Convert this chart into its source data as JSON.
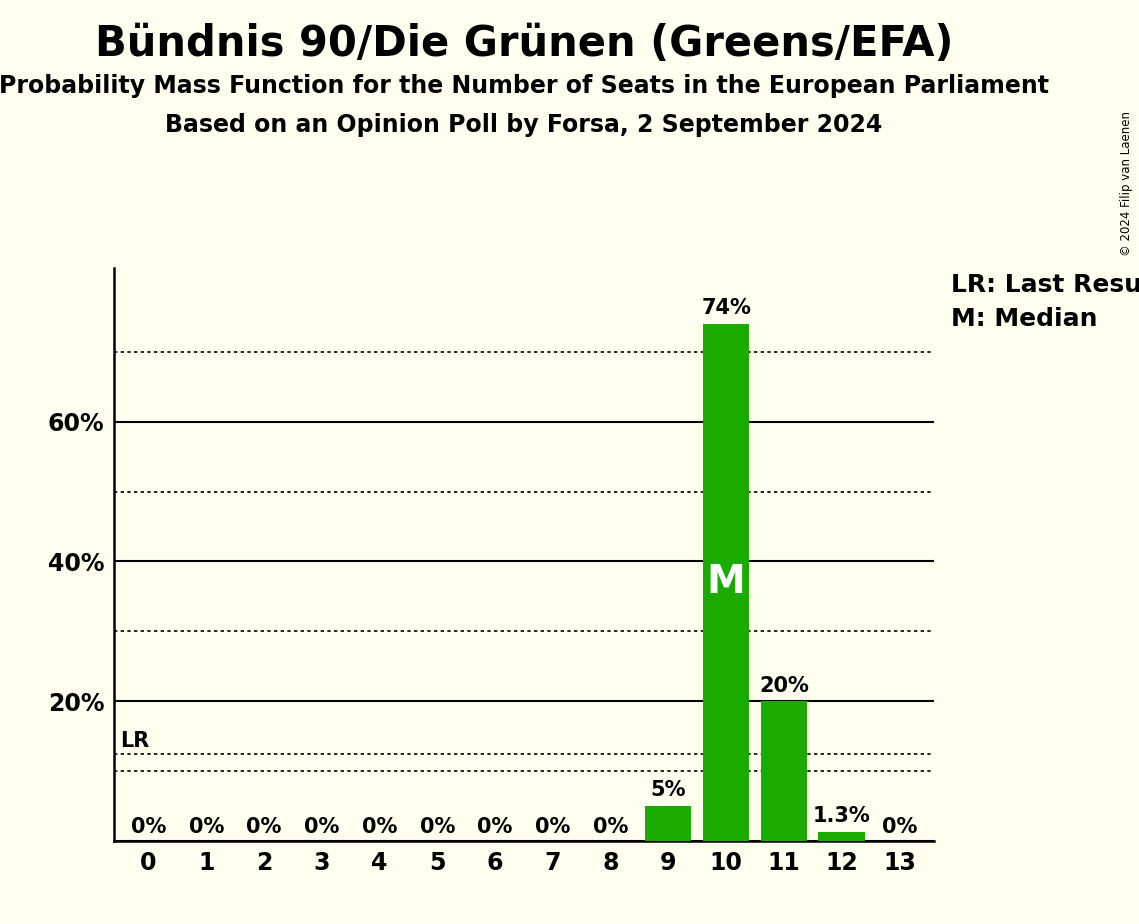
{
  "title": "Bündnis 90/Die Grünen (Greens/EFA)",
  "subtitle1": "Probability Mass Function for the Number of Seats in the European Parliament",
  "subtitle2": "Based on an Opinion Poll by Forsa, 2 September 2024",
  "copyright": "© 2024 Filip van Laenen",
  "categories": [
    0,
    1,
    2,
    3,
    4,
    5,
    6,
    7,
    8,
    9,
    10,
    11,
    12,
    13
  ],
  "values": [
    0,
    0,
    0,
    0,
    0,
    0,
    0,
    0,
    0,
    5,
    74,
    20,
    1.3,
    0
  ],
  "labels": [
    "0%",
    "0%",
    "0%",
    "0%",
    "0%",
    "0%",
    "0%",
    "0%",
    "0%",
    "5%",
    "74%",
    "20%",
    "1.3%",
    "0%"
  ],
  "bar_color": "#1aaa00",
  "background_color": "#fffff0",
  "median_seat": 10,
  "median_label": "M",
  "lr_pct": 12.5,
  "lr_label": "LR",
  "legend_lr": "LR: Last Result",
  "legend_m": "M: Median",
  "solid_lines": [
    0,
    20,
    40,
    60
  ],
  "dotted_lines": [
    10,
    30,
    50,
    70
  ],
  "title_fontsize": 30,
  "subtitle_fontsize": 17,
  "tick_fontsize": 17,
  "bar_label_fontsize": 15,
  "legend_fontsize": 18,
  "median_fontsize": 28,
  "lr_fontsize": 15
}
